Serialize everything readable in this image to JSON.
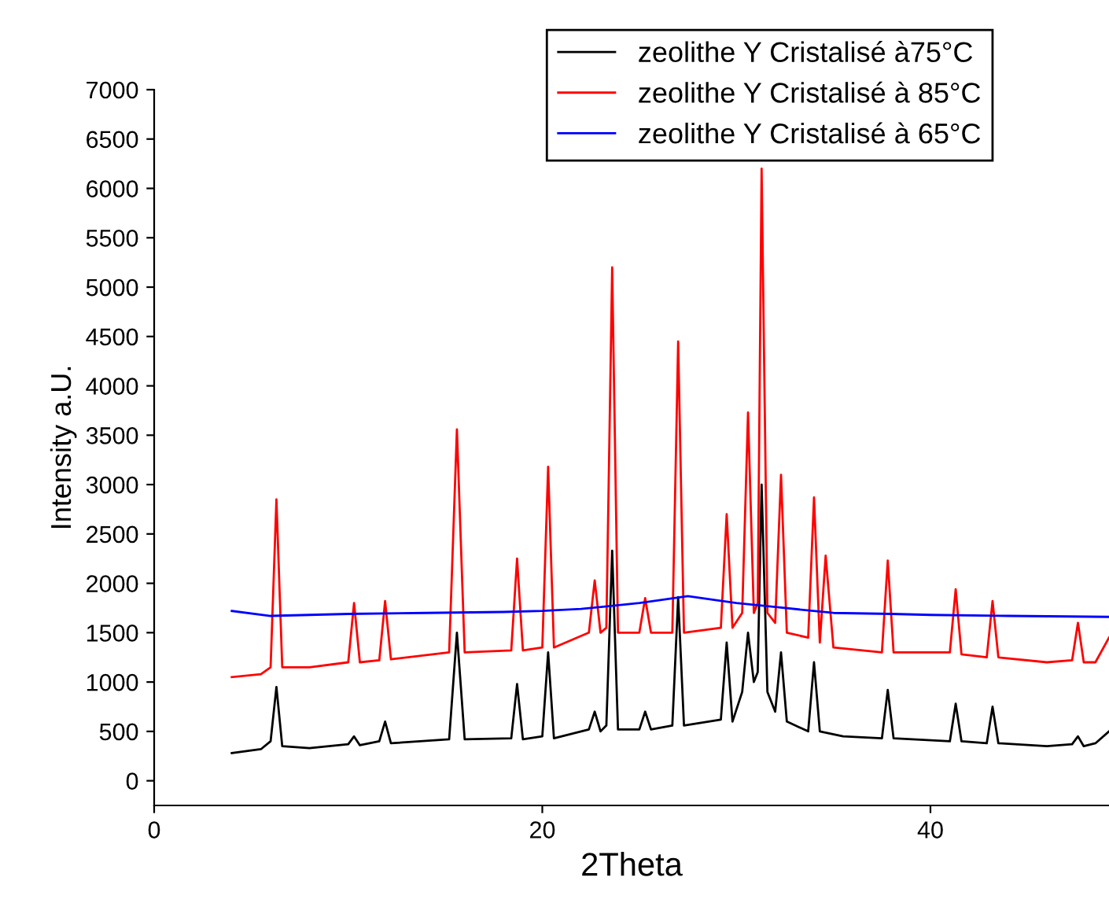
{
  "chart_data": {
    "type": "line",
    "xlabel": "2Theta",
    "ylabel": "Intensity a.U.",
    "xlim": [
      0,
      49.2
    ],
    "ylim": [
      -250,
      7000
    ],
    "xticks": [
      0,
      20,
      40
    ],
    "yticks": [
      0,
      500,
      1000,
      1500,
      2000,
      2500,
      3000,
      3500,
      4000,
      4500,
      5000,
      5500,
      6000,
      6500,
      7000
    ],
    "legend": "top right",
    "grid": false,
    "series": [
      {
        "name": "zeolithe Y Cristalisé à75°C",
        "color": "#000000",
        "x": [
          4,
          5.5,
          6.0,
          6.3,
          6.6,
          8,
          10.0,
          10.3,
          10.6,
          11.6,
          11.9,
          12.2,
          15.2,
          15.6,
          16.0,
          18.4,
          18.7,
          19.0,
          20.0,
          20.3,
          20.6,
          22.4,
          22.7,
          23.0,
          23.3,
          23.6,
          23.9,
          25.0,
          25.3,
          25.6,
          26.7,
          27.0,
          27.3,
          29.2,
          29.5,
          29.8,
          30.3,
          30.6,
          30.9,
          31.1,
          31.3,
          31.6,
          32.0,
          32.3,
          32.6,
          33.7,
          34.0,
          34.3,
          35.5,
          37.5,
          37.8,
          38.1,
          41.0,
          41.3,
          41.6,
          42.9,
          43.2,
          43.5,
          46,
          47.3,
          47.6,
          47.9,
          48.5,
          49.2
        ],
        "values": [
          280,
          320,
          400,
          950,
          350,
          330,
          370,
          450,
          360,
          400,
          600,
          380,
          420,
          1500,
          420,
          430,
          980,
          420,
          450,
          1300,
          430,
          520,
          700,
          500,
          560,
          2330,
          520,
          520,
          700,
          520,
          560,
          1860,
          560,
          620,
          1400,
          600,
          900,
          1500,
          1000,
          1100,
          3000,
          900,
          700,
          1300,
          600,
          500,
          1200,
          500,
          450,
          430,
          920,
          430,
          400,
          780,
          400,
          380,
          750,
          380,
          350,
          370,
          450,
          350,
          380,
          500
        ]
      },
      {
        "name": "zeolithe Y Cristalisé à 85°C",
        "color": "#ff0000",
        "x": [
          4,
          5.5,
          6.0,
          6.3,
          6.6,
          8,
          10.0,
          10.3,
          10.6,
          11.6,
          11.9,
          12.2,
          15.2,
          15.6,
          16.0,
          18.4,
          18.7,
          19.0,
          20.0,
          20.3,
          20.6,
          22.4,
          22.7,
          23.0,
          23.3,
          23.6,
          23.9,
          25.0,
          25.3,
          25.6,
          26.7,
          27.0,
          27.3,
          29.2,
          29.5,
          29.8,
          30.3,
          30.6,
          30.9,
          31.1,
          31.3,
          31.6,
          32.0,
          32.3,
          32.6,
          33.7,
          34.0,
          34.3,
          34.6,
          35.0,
          37.5,
          37.8,
          38.1,
          41.0,
          41.3,
          41.6,
          42.9,
          43.2,
          43.5,
          46,
          47.3,
          47.6,
          47.9,
          48.5,
          49.2
        ],
        "values": [
          1050,
          1080,
          1150,
          2850,
          1150,
          1150,
          1200,
          1800,
          1200,
          1220,
          1820,
          1230,
          1300,
          3560,
          1300,
          1320,
          2250,
          1320,
          1350,
          3180,
          1350,
          1500,
          2030,
          1500,
          1550,
          5200,
          1500,
          1500,
          1850,
          1500,
          1500,
          4450,
          1500,
          1550,
          2700,
          1550,
          1700,
          3730,
          1700,
          1800,
          6200,
          1700,
          1600,
          3100,
          1500,
          1450,
          2870,
          1400,
          2280,
          1350,
          1300,
          2230,
          1300,
          1300,
          1940,
          1280,
          1250,
          1820,
          1250,
          1200,
          1220,
          1600,
          1200,
          1200,
          1450
        ]
      },
      {
        "name": "zeolithe Y Cristalisé à 65°C",
        "color": "#0000ff",
        "x": [
          4,
          6,
          8,
          10,
          14,
          18,
          20,
          22,
          25,
          27.5,
          30,
          32,
          35,
          38,
          40,
          44,
          49.2
        ],
        "values": [
          1720,
          1670,
          1680,
          1690,
          1700,
          1710,
          1720,
          1740,
          1800,
          1870,
          1800,
          1760,
          1700,
          1690,
          1680,
          1670,
          1660
        ]
      }
    ]
  }
}
